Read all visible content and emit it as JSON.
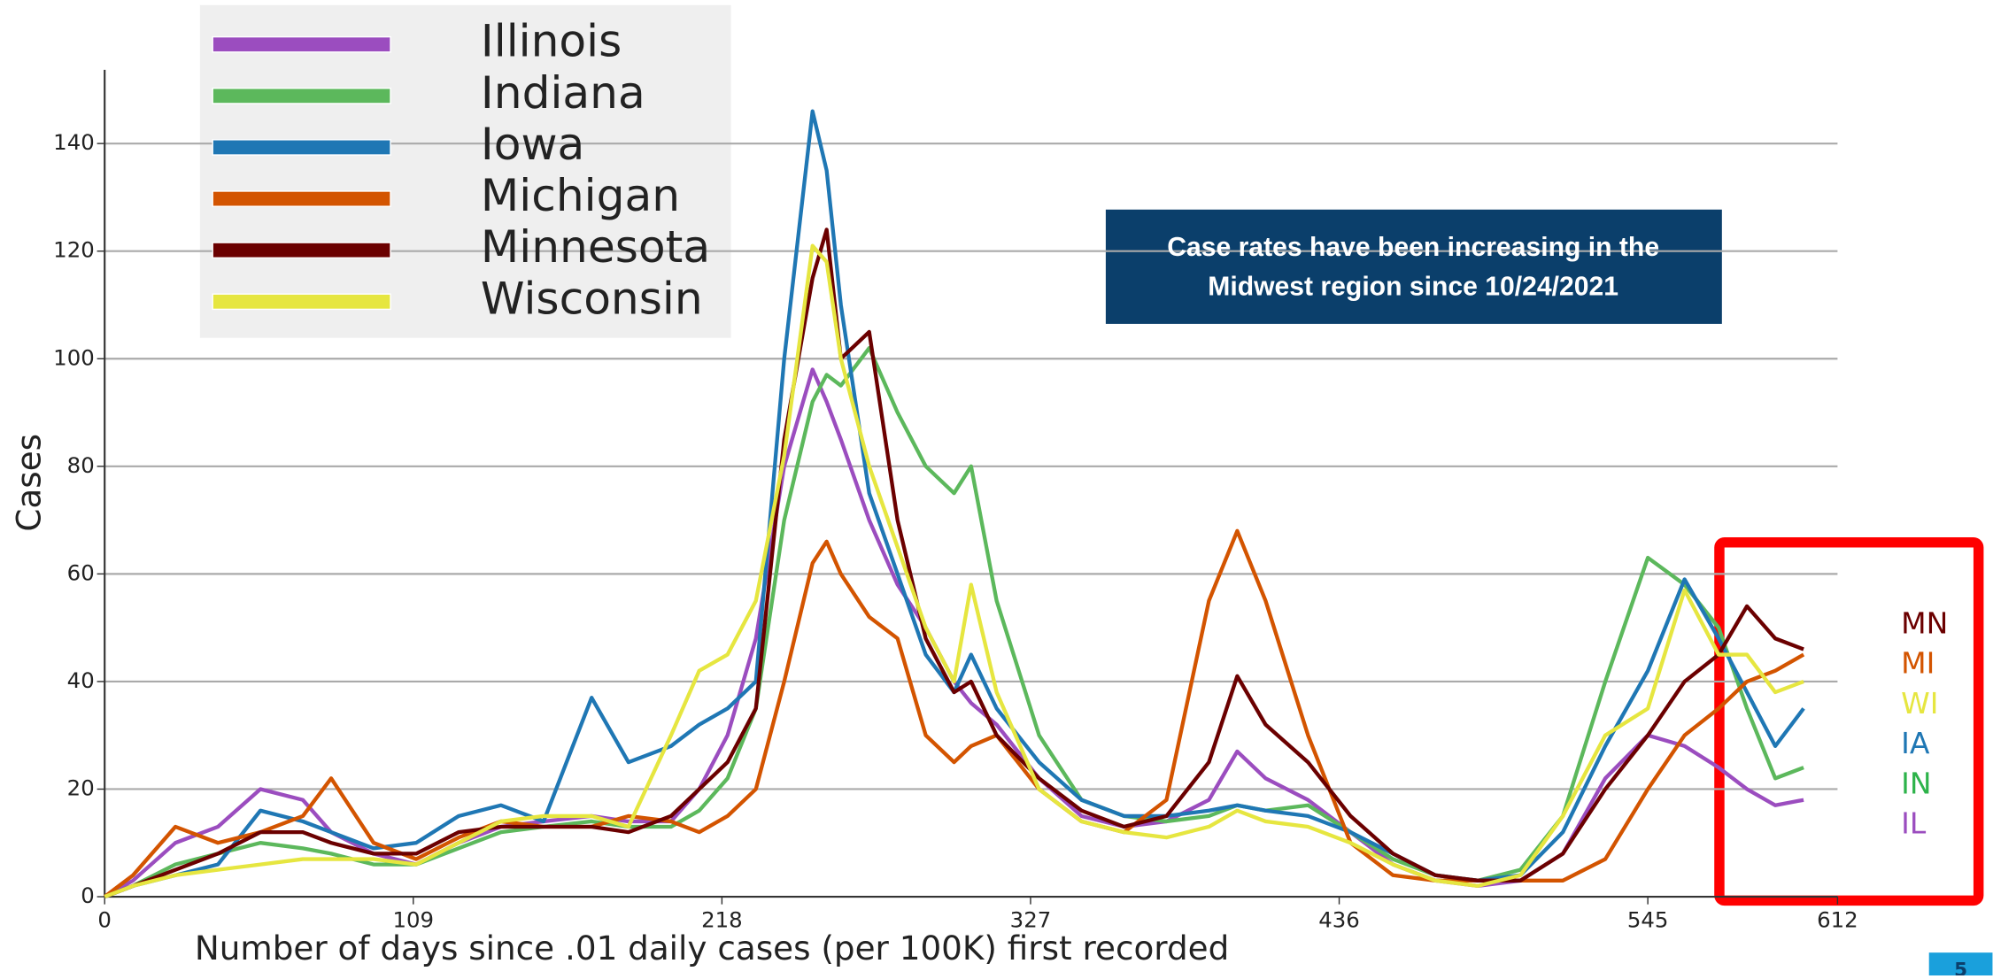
{
  "chart_data": {
    "type": "line",
    "xlabel": "Number of days since .01 daily cases (per 100K) first recorded",
    "ylabel": "Cases",
    "xlim": [
      0,
      612
    ],
    "xticks": [
      0,
      109,
      218,
      327,
      436,
      545,
      612
    ],
    "ylim": [
      0,
      140
    ],
    "yticks": [
      0,
      20,
      40,
      60,
      80,
      100,
      120,
      140
    ],
    "grid": true,
    "x": [
      0,
      10,
      25,
      40,
      55,
      70,
      80,
      95,
      110,
      125,
      140,
      155,
      172,
      185,
      200,
      210,
      220,
      230,
      240,
      250,
      255,
      260,
      270,
      280,
      290,
      300,
      306,
      315,
      330,
      345,
      360,
      375,
      390,
      400,
      410,
      425,
      440,
      455,
      470,
      485,
      500,
      515,
      530,
      545,
      558,
      570,
      580,
      590,
      600
    ],
    "series": [
      {
        "name": "Illinois",
        "color": "#9b4dbf",
        "values": [
          0,
          3,
          10,
          13,
          20,
          18,
          12,
          8,
          6,
          10,
          13,
          14,
          15,
          14,
          14,
          20,
          30,
          48,
          80,
          98,
          92,
          85,
          70,
          58,
          50,
          40,
          36,
          32,
          22,
          15,
          13,
          14,
          18,
          27,
          22,
          18,
          12,
          6,
          3,
          2,
          3,
          8,
          22,
          30,
          28,
          24,
          20,
          17,
          18
        ]
      },
      {
        "name": "Indiana",
        "color": "#5cb85c",
        "values": [
          0,
          2,
          6,
          8,
          10,
          9,
          8,
          6,
          6,
          9,
          12,
          13,
          14,
          13,
          13,
          16,
          22,
          35,
          70,
          92,
          97,
          95,
          102,
          90,
          80,
          75,
          80,
          55,
          30,
          18,
          15,
          14,
          15,
          17,
          16,
          17,
          12,
          7,
          4,
          3,
          5,
          15,
          40,
          63,
          58,
          50,
          35,
          22,
          24
        ]
      },
      {
        "name": "Iowa",
        "color": "#1f77b4",
        "values": [
          0,
          2,
          4,
          6,
          16,
          14,
          12,
          9,
          10,
          15,
          17,
          14,
          37,
          25,
          28,
          32,
          35,
          40,
          100,
          146,
          135,
          110,
          75,
          60,
          45,
          38,
          45,
          35,
          25,
          18,
          15,
          15,
          16,
          17,
          16,
          15,
          12,
          8,
          4,
          3,
          4,
          12,
          28,
          42,
          59,
          48,
          38,
          28,
          35
        ]
      },
      {
        "name": "Michigan",
        "color": "#d35400",
        "values": [
          0,
          4,
          13,
          10,
          12,
          15,
          22,
          10,
          7,
          11,
          14,
          13,
          13,
          15,
          14,
          12,
          15,
          20,
          40,
          62,
          66,
          60,
          52,
          48,
          30,
          25,
          28,
          30,
          20,
          14,
          12,
          18,
          55,
          68,
          55,
          30,
          10,
          4,
          3,
          3,
          3,
          3,
          7,
          20,
          30,
          35,
          40,
          42,
          45
        ]
      },
      {
        "name": "Minnesota",
        "color": "#6b0000",
        "values": [
          0,
          2,
          5,
          8,
          12,
          12,
          10,
          8,
          8,
          12,
          13,
          13,
          13,
          12,
          15,
          20,
          25,
          35,
          85,
          115,
          124,
          100,
          105,
          70,
          48,
          38,
          40,
          30,
          22,
          16,
          13,
          15,
          25,
          41,
          32,
          25,
          15,
          8,
          4,
          3,
          3,
          8,
          20,
          30,
          40,
          45,
          54,
          48,
          46
        ]
      },
      {
        "name": "Wisconsin",
        "color": "#e6e640",
        "values": [
          0,
          2,
          4,
          5,
          6,
          7,
          7,
          7,
          6,
          10,
          14,
          15,
          15,
          13,
          30,
          42,
          45,
          55,
          82,
          121,
          118,
          100,
          80,
          65,
          50,
          40,
          58,
          38,
          20,
          14,
          12,
          11,
          13,
          16,
          14,
          13,
          10,
          6,
          3,
          2,
          4,
          15,
          30,
          35,
          57,
          45,
          45,
          38,
          40
        ]
      }
    ],
    "note": [
      "Case rates have been increasing in the",
      "Midwest region since 10/24/2021"
    ],
    "end_labels": [
      {
        "text": "MN",
        "color": "#6b0000"
      },
      {
        "text": "MI",
        "color": "#d35400"
      },
      {
        "text": "WI",
        "color": "#e6e640"
      },
      {
        "text": "IA",
        "color": "#1f77b4"
      },
      {
        "text": "IN",
        "color": "#2db34a"
      },
      {
        "text": "IL",
        "color": "#9b4dbf"
      }
    ],
    "page_number": "5"
  }
}
